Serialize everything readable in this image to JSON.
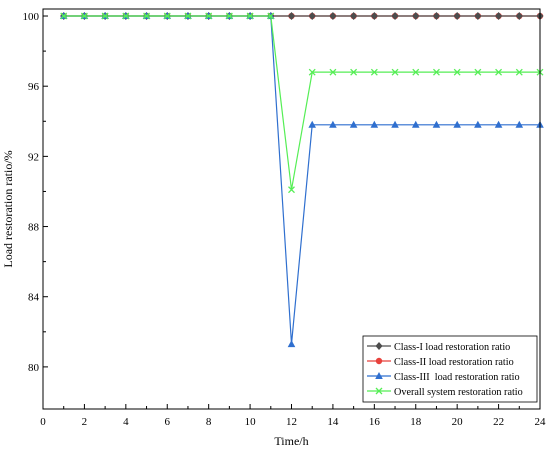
{
  "chart_data": {
    "type": "line",
    "title": "",
    "xlabel": "Time/h",
    "ylabel": "Load restoration ratio/%",
    "xlim": [
      0,
      24
    ],
    "ylim": [
      77.6,
      100.4
    ],
    "xticks": [
      0,
      2,
      4,
      6,
      8,
      10,
      12,
      14,
      16,
      18,
      20,
      22,
      24
    ],
    "yticks": [
      80,
      84,
      88,
      92,
      96,
      100
    ],
    "grid": false,
    "legend_position": "bottom-right",
    "x": [
      1,
      2,
      3,
      4,
      5,
      6,
      7,
      8,
      9,
      10,
      11,
      12,
      13,
      14,
      15,
      16,
      17,
      18,
      19,
      20,
      21,
      22,
      23,
      24
    ],
    "series": [
      {
        "name": "Class-I load restoration ratio",
        "color": "#4d4d4d",
        "marker": "diamond",
        "values": [
          100,
          100,
          100,
          100,
          100,
          100,
          100,
          100,
          100,
          100,
          100,
          100,
          100,
          100,
          100,
          100,
          100,
          100,
          100,
          100,
          100,
          100,
          100,
          100
        ]
      },
      {
        "name": "Class-II load restoration ratio",
        "color": "#e8413c",
        "marker": "circle",
        "values": [
          100,
          100,
          100,
          100,
          100,
          100,
          100,
          100,
          100,
          100,
          100,
          100,
          100,
          100,
          100,
          100,
          100,
          100,
          100,
          100,
          100,
          100,
          100,
          100
        ]
      },
      {
        "name": "Class-III  load restoration ratio",
        "color": "#2f6fcf",
        "marker": "triangle",
        "values": [
          100,
          100,
          100,
          100,
          100,
          100,
          100,
          100,
          100,
          100,
          100,
          81.3,
          93.8,
          93.8,
          93.8,
          93.8,
          93.8,
          93.8,
          93.8,
          93.8,
          93.8,
          93.8,
          93.8,
          93.8
        ]
      },
      {
        "name": "Overall system restoration ratio",
        "color": "#55ee55",
        "marker": "x",
        "values": [
          100,
          100,
          100,
          100,
          100,
          100,
          100,
          100,
          100,
          100,
          100,
          90.1,
          96.8,
          96.8,
          96.8,
          96.8,
          96.8,
          96.8,
          96.8,
          96.8,
          96.8,
          96.8,
          96.8,
          96.8
        ]
      }
    ]
  }
}
